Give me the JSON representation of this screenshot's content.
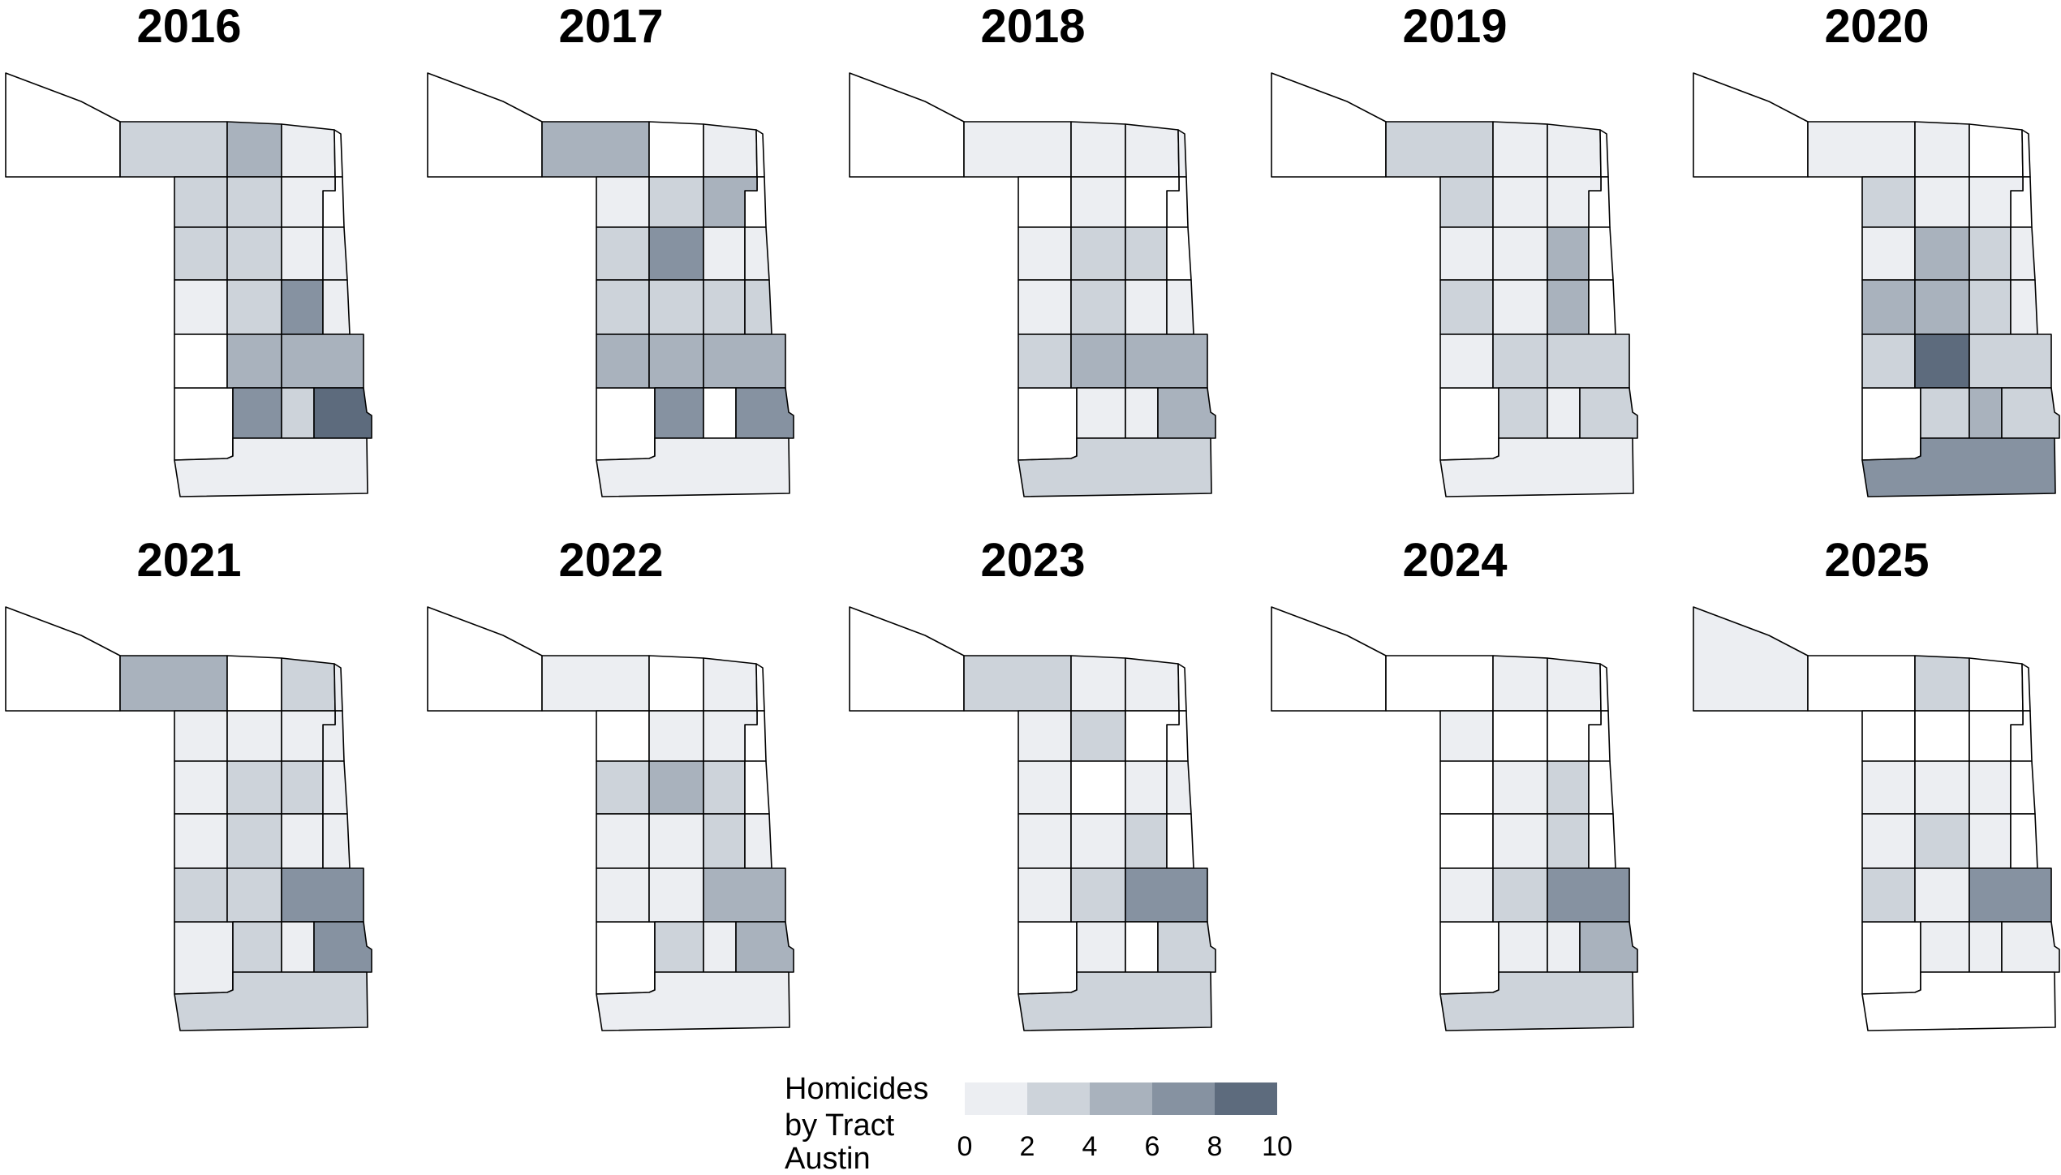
{
  "legend": {
    "title_lines": [
      "Homicides",
      "by Tract",
      "Austin"
    ],
    "bins": [
      {
        "range": [
          0,
          2
        ],
        "color": "#eceef2"
      },
      {
        "range": [
          2,
          4
        ],
        "color": "#cdd3da"
      },
      {
        "range": [
          4,
          6
        ],
        "color": "#a9b2bd"
      },
      {
        "range": [
          6,
          8
        ],
        "color": "#8692a1"
      },
      {
        "range": [
          8,
          10
        ],
        "color": "#5d6b7d"
      }
    ],
    "ticks": [
      "0",
      "2",
      "4",
      "6",
      "8",
      "10"
    ],
    "zero_color": "#ffffff"
  },
  "tract_ids": [
    "NW",
    "N1",
    "N2",
    "N3",
    "N4",
    "E1",
    "A1",
    "A2",
    "A3",
    "A4",
    "B1",
    "B2",
    "B3",
    "B4",
    "C1",
    "C2",
    "C3",
    "C4",
    "D1",
    "D2",
    "D3",
    "E2",
    "E3",
    "E4",
    "S"
  ],
  "panels": [
    {
      "year": "2016",
      "homicides": {
        "NW": 0,
        "N1": 3,
        "N2": 5,
        "N3": 1,
        "N4": 0,
        "E1": 0,
        "A1": 3,
        "A2": 4,
        "A3": 2,
        "A4": 0,
        "B1": 4,
        "B2": 3,
        "B3": 1,
        "B4": 1,
        "C1": 2,
        "C2": 4,
        "C3": 8,
        "C4": 2,
        "D1": 0,
        "D2": 6,
        "D3": 6,
        "E2": 8,
        "E3": 3,
        "E4": 9,
        "S": 1
      }
    },
    {
      "year": "2017",
      "homicides": {
        "NW": 0,
        "N1": 6,
        "N2": 0,
        "N3": 1,
        "N4": 0,
        "E1": 0,
        "A1": 1,
        "A2": 3,
        "A3": 5,
        "A4": 0,
        "B1": 3,
        "B2": 7,
        "B3": 2,
        "B4": 1,
        "C1": 3,
        "C2": 3,
        "C3": 4,
        "C4": 3,
        "D1": 6,
        "D2": 6,
        "D3": 5,
        "E2": 8,
        "E3": 0,
        "E4": 8,
        "S": 2
      }
    },
    {
      "year": "2018",
      "homicides": {
        "NW": 0,
        "N1": 1,
        "N2": 1,
        "N3": 1,
        "N4": 2,
        "E1": 0,
        "A1": 0,
        "A2": 2,
        "A3": 0,
        "A4": 0,
        "B1": 2,
        "B2": 4,
        "B3": 3,
        "B4": 0,
        "C1": 1,
        "C2": 4,
        "C3": 1,
        "C4": 1,
        "D1": 3,
        "D2": 6,
        "D3": 6,
        "E2": 2,
        "E3": 1,
        "E4": 6,
        "S": 4
      }
    },
    {
      "year": "2019",
      "homicides": {
        "NW": 0,
        "N1": 3,
        "N2": 2,
        "N3": 1,
        "N4": 0,
        "E1": 0,
        "A1": 3,
        "A2": 1,
        "A3": 1,
        "A4": 0,
        "B1": 2,
        "B2": 2,
        "B3": 6,
        "B4": 0,
        "C1": 3,
        "C2": 1,
        "C3": 6,
        "C4": 0,
        "D1": 2,
        "D2": 4,
        "D3": 4,
        "E2": 4,
        "E3": 1,
        "E4": 3,
        "S": 2
      }
    },
    {
      "year": "2020",
      "homicides": {
        "NW": 0,
        "N1": 2,
        "N2": 2,
        "N3": 0,
        "N4": 0,
        "E1": 0,
        "A1": 3,
        "A2": 1,
        "A3": 2,
        "A4": 0,
        "B1": 2,
        "B2": 6,
        "B3": 3,
        "B4": 2,
        "C1": 5,
        "C2": 5,
        "C3": 4,
        "C4": 2,
        "D1": 4,
        "D2": 9,
        "D3": 4,
        "E2": 3,
        "E3": 5,
        "E4": 4,
        "S": 7
      }
    },
    {
      "year": "2021",
      "homicides": {
        "NW": 0,
        "N1": 5,
        "N2": 0,
        "N3": 3,
        "N4": 2,
        "E1": 2,
        "A1": 2,
        "A2": 2,
        "A3": 2,
        "A4": 1,
        "B1": 1,
        "B2": 4,
        "B3": 3,
        "B4": 1,
        "C1": 2,
        "C2": 3,
        "C3": 2,
        "C4": 2,
        "D1": 4,
        "D2": 3,
        "D3": 8,
        "E2": 3,
        "E3": 2,
        "E4": 8,
        "S": 4
      }
    },
    {
      "year": "2022",
      "homicides": {
        "NW": 0,
        "N1": 1,
        "N2": 0,
        "N3": 1,
        "N4": 0,
        "E1": 0,
        "A1": 0,
        "A2": 2,
        "A3": 1,
        "A4": 0,
        "B1": 4,
        "B2": 6,
        "B3": 3,
        "B4": 0,
        "C1": 2,
        "C2": 2,
        "C3": 4,
        "C4": 1,
        "D1": 1,
        "D2": 1,
        "D3": 5,
        "E2": 4,
        "E3": 2,
        "E4": 5,
        "S": 1
      }
    },
    {
      "year": "2023",
      "homicides": {
        "NW": 0,
        "N1": 3,
        "N2": 1,
        "N3": 1,
        "N4": 0,
        "E1": 0,
        "A1": 1,
        "A2": 4,
        "A3": 0,
        "A4": 0,
        "B1": 2,
        "B2": 0,
        "B3": 2,
        "B4": 2,
        "C1": 2,
        "C2": 2,
        "C3": 3,
        "C4": 0,
        "D1": 2,
        "D2": 4,
        "D3": 7,
        "E2": 2,
        "E3": 0,
        "E4": 4,
        "S": 3
      }
    },
    {
      "year": "2024",
      "homicides": {
        "NW": 0,
        "N1": 0,
        "N2": 1,
        "N3": 1,
        "N4": 0,
        "E1": 0,
        "A1": 2,
        "A2": 0,
        "A3": 0,
        "A4": 0,
        "B1": 0,
        "B2": 2,
        "B3": 3,
        "B4": 0,
        "C1": 0,
        "C2": 2,
        "C3": 4,
        "C4": 0,
        "D1": 2,
        "D2": 4,
        "D3": 8,
        "E2": 2,
        "E3": 2,
        "E4": 5,
        "S": 4
      }
    },
    {
      "year": "2025",
      "homicides": {
        "NW": 1,
        "N1": 0,
        "N2": 4,
        "N3": 0,
        "N4": 0,
        "E1": 0,
        "A1": 0,
        "A2": 0,
        "A3": 0,
        "A4": 0,
        "B1": 2,
        "B2": 1,
        "B3": 1,
        "B4": 0,
        "C1": 2,
        "C2": 3,
        "C3": 2,
        "C4": 0,
        "D1": 3,
        "D2": 2,
        "D3": 8,
        "E2": 1,
        "E3": 1,
        "E4": 2,
        "S": 0
      }
    }
  ]
}
